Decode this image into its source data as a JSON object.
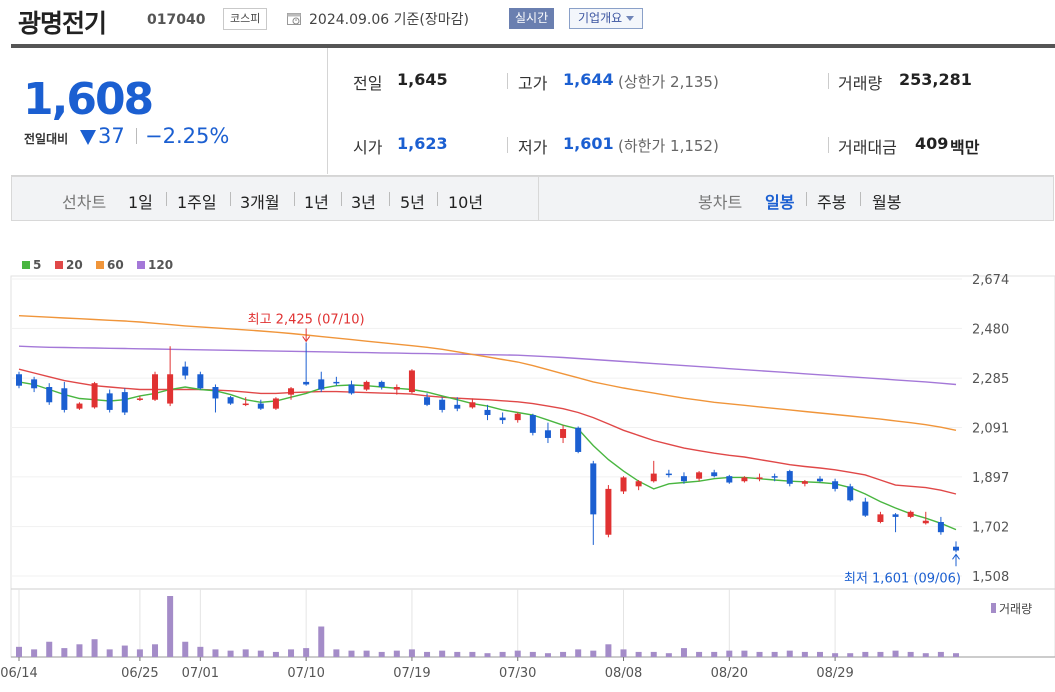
{
  "header": {
    "stock_name": "광명전기",
    "stock_code": "017040",
    "market_badge": "코스피",
    "calendar_icon": "calendar-icon",
    "date_text": "2024.09.06 기준(장마감)",
    "live_button": "실시간",
    "corp_button": "기업개요"
  },
  "quote": {
    "price": "1,608",
    "change_label": "전일대비",
    "change_value": "37",
    "change_pct": "−2.25%",
    "prev_close_label": "전일",
    "prev_close": "1,645",
    "open_label": "시가",
    "open": "1,623",
    "high_label": "고가",
    "high": "1,644",
    "upper_limit": "(상한가 2,135)",
    "low_label": "저가",
    "low": "1,601",
    "lower_limit": "(하한가 1,152)",
    "volume_label": "거래량",
    "volume": "253,281",
    "amount_label": "거래대금",
    "amount": "409",
    "amount_unit": "백만",
    "colors": {
      "down": "#1b5fd1",
      "up": "#e03232"
    }
  },
  "periods": {
    "line_label": "선차트",
    "line_items": [
      "1일",
      "1주일",
      "3개월",
      "1년",
      "3년",
      "5년",
      "10년"
    ],
    "candle_label": "봉차트",
    "candle_items": [
      "일봉",
      "주봉",
      "월봉"
    ],
    "candle_selected": "일봉"
  },
  "chart_data": {
    "type": "candlestick",
    "legend": [
      {
        "name": "5",
        "color": "#49b640"
      },
      {
        "name": "20",
        "color": "#e04848"
      },
      {
        "name": "60",
        "color": "#f0953a"
      },
      {
        "name": "120",
        "color": "#a478d8"
      }
    ],
    "y_ticks": [
      "2,674",
      "2,480",
      "2,285",
      "2,091",
      "1,897",
      "1,702",
      "1,508"
    ],
    "ylim": [
      1508,
      2674
    ],
    "x_labels": [
      {
        "i": 0,
        "label": "06/14"
      },
      {
        "i": 8,
        "label": "06/25"
      },
      {
        "i": 12,
        "label": "07/01"
      },
      {
        "i": 19,
        "label": "07/10"
      },
      {
        "i": 26,
        "label": "07/19"
      },
      {
        "i": 33,
        "label": "07/30"
      },
      {
        "i": 40,
        "label": "08/08"
      },
      {
        "i": 47,
        "label": "08/20"
      },
      {
        "i": 54,
        "label": "08/29"
      }
    ],
    "annotation_high": "최고 2,425 (07/10)",
    "annotation_low": "최저 1,601 (09/06)",
    "volume_label": "거래량",
    "candles": [
      {
        "o": 2300,
        "h": 2310,
        "l": 2245,
        "c": 2255
      },
      {
        "o": 2280,
        "h": 2290,
        "l": 2230,
        "c": 2245
      },
      {
        "o": 2250,
        "h": 2265,
        "l": 2180,
        "c": 2190
      },
      {
        "o": 2245,
        "h": 2270,
        "l": 2150,
        "c": 2160
      },
      {
        "o": 2165,
        "h": 2190,
        "l": 2160,
        "c": 2185
      },
      {
        "o": 2170,
        "h": 2270,
        "l": 2165,
        "c": 2265
      },
      {
        "o": 2225,
        "h": 2240,
        "l": 2150,
        "c": 2160
      },
      {
        "o": 2230,
        "h": 2245,
        "l": 2140,
        "c": 2150
      },
      {
        "o": 2200,
        "h": 2215,
        "l": 2195,
        "c": 2205
      },
      {
        "o": 2200,
        "h": 2310,
        "l": 2195,
        "c": 2300
      },
      {
        "o": 2185,
        "h": 2410,
        "l": 2175,
        "c": 2300
      },
      {
        "o": 2330,
        "h": 2350,
        "l": 2280,
        "c": 2295
      },
      {
        "o": 2300,
        "h": 2310,
        "l": 2240,
        "c": 2245
      },
      {
        "o": 2250,
        "h": 2260,
        "l": 2150,
        "c": 2205
      },
      {
        "o": 2210,
        "h": 2215,
        "l": 2180,
        "c": 2185
      },
      {
        "o": 2180,
        "h": 2210,
        "l": 2175,
        "c": 2185
      },
      {
        "o": 2185,
        "h": 2200,
        "l": 2160,
        "c": 2165
      },
      {
        "o": 2165,
        "h": 2210,
        "l": 2160,
        "c": 2205
      },
      {
        "o": 2220,
        "h": 2250,
        "l": 2200,
        "c": 2245
      },
      {
        "o": 2270,
        "h": 2425,
        "l": 2255,
        "c": 2260
      },
      {
        "o": 2280,
        "h": 2310,
        "l": 2230,
        "c": 2240
      },
      {
        "o": 2270,
        "h": 2290,
        "l": 2255,
        "c": 2265
      },
      {
        "o": 2260,
        "h": 2275,
        "l": 2220,
        "c": 2225
      },
      {
        "o": 2240,
        "h": 2275,
        "l": 2235,
        "c": 2270
      },
      {
        "o": 2270,
        "h": 2275,
        "l": 2240,
        "c": 2250
      },
      {
        "o": 2240,
        "h": 2260,
        "l": 2220,
        "c": 2250
      },
      {
        "o": 2230,
        "h": 2320,
        "l": 2225,
        "c": 2315
      },
      {
        "o": 2210,
        "h": 2225,
        "l": 2175,
        "c": 2180
      },
      {
        "o": 2200,
        "h": 2210,
        "l": 2150,
        "c": 2160
      },
      {
        "o": 2180,
        "h": 2210,
        "l": 2155,
        "c": 2165
      },
      {
        "o": 2170,
        "h": 2205,
        "l": 2165,
        "c": 2190
      },
      {
        "o": 2160,
        "h": 2180,
        "l": 2120,
        "c": 2140
      },
      {
        "o": 2130,
        "h": 2150,
        "l": 2105,
        "c": 2120
      },
      {
        "o": 2120,
        "h": 2150,
        "l": 2110,
        "c": 2145
      },
      {
        "o": 2140,
        "h": 2145,
        "l": 2060,
        "c": 2070
      },
      {
        "o": 2080,
        "h": 2110,
        "l": 2030,
        "c": 2050
      },
      {
        "o": 2050,
        "h": 2100,
        "l": 2030,
        "c": 2085
      },
      {
        "o": 2090,
        "h": 2095,
        "l": 1990,
        "c": 1995
      },
      {
        "o": 1950,
        "h": 1960,
        "l": 1630,
        "c": 1750
      },
      {
        "o": 1670,
        "h": 1865,
        "l": 1660,
        "c": 1850
      },
      {
        "o": 1840,
        "h": 1900,
        "l": 1830,
        "c": 1895
      },
      {
        "o": 1860,
        "h": 1885,
        "l": 1845,
        "c": 1880
      },
      {
        "o": 1880,
        "h": 1960,
        "l": 1875,
        "c": 1910
      },
      {
        "o": 1910,
        "h": 1925,
        "l": 1895,
        "c": 1905
      },
      {
        "o": 1900,
        "h": 1915,
        "l": 1870,
        "c": 1880
      },
      {
        "o": 1890,
        "h": 1920,
        "l": 1880,
        "c": 1915
      },
      {
        "o": 1915,
        "h": 1925,
        "l": 1895,
        "c": 1900
      },
      {
        "o": 1900,
        "h": 1905,
        "l": 1870,
        "c": 1875
      },
      {
        "o": 1880,
        "h": 1900,
        "l": 1875,
        "c": 1895
      },
      {
        "o": 1890,
        "h": 1910,
        "l": 1880,
        "c": 1895
      },
      {
        "o": 1900,
        "h": 1910,
        "l": 1880,
        "c": 1895
      },
      {
        "o": 1920,
        "h": 1925,
        "l": 1860,
        "c": 1870
      },
      {
        "o": 1870,
        "h": 1885,
        "l": 1860,
        "c": 1880
      },
      {
        "o": 1890,
        "h": 1900,
        "l": 1875,
        "c": 1880
      },
      {
        "o": 1880,
        "h": 1890,
        "l": 1840,
        "c": 1850
      },
      {
        "o": 1860,
        "h": 1870,
        "l": 1800,
        "c": 1805
      },
      {
        "o": 1800,
        "h": 1815,
        "l": 1740,
        "c": 1745
      },
      {
        "o": 1720,
        "h": 1760,
        "l": 1715,
        "c": 1750
      },
      {
        "o": 1750,
        "h": 1755,
        "l": 1680,
        "c": 1740
      },
      {
        "o": 1740,
        "h": 1765,
        "l": 1735,
        "c": 1760
      },
      {
        "o": 1715,
        "h": 1760,
        "l": 1710,
        "c": 1725
      },
      {
        "o": 1720,
        "h": 1740,
        "l": 1670,
        "c": 1680
      },
      {
        "o": 1623,
        "h": 1644,
        "l": 1601,
        "c": 1608
      }
    ],
    "ma5": [
      2270,
      2260,
      2240,
      2220,
      2205,
      2200,
      2195,
      2200,
      2215,
      2225,
      2240,
      2250,
      2240,
      2235,
      2220,
      2200,
      2190,
      2195,
      2210,
      2225,
      2245,
      2255,
      2258,
      2255,
      2250,
      2245,
      2240,
      2230,
      2215,
      2200,
      2185,
      2175,
      2160,
      2150,
      2140,
      2120,
      2100,
      2085,
      2020,
      1965,
      1920,
      1880,
      1850,
      1870,
      1875,
      1880,
      1890,
      1895,
      1895,
      1890,
      1885,
      1880,
      1878,
      1875,
      1870,
      1855,
      1830,
      1800,
      1775,
      1752,
      1735,
      1715,
      1690
    ],
    "ma20": [
      2320,
      2305,
      2290,
      2275,
      2265,
      2255,
      2250,
      2245,
      2240,
      2240,
      2240,
      2240,
      2240,
      2238,
      2235,
      2230,
      2225,
      2225,
      2228,
      2230,
      2232,
      2232,
      2230,
      2228,
      2226,
      2225,
      2222,
      2215,
      2210,
      2206,
      2203,
      2200,
      2196,
      2192,
      2185,
      2175,
      2165,
      2150,
      2130,
      2105,
      2080,
      2060,
      2040,
      2025,
      2010,
      2000,
      1990,
      1982,
      1975,
      1965,
      1955,
      1945,
      1938,
      1932,
      1925,
      1915,
      1905,
      1885,
      1865,
      1860,
      1855,
      1845,
      1830
    ],
    "ma60": [
      2530,
      2527,
      2524,
      2521,
      2518,
      2515,
      2512,
      2509,
      2505,
      2500,
      2495,
      2490,
      2486,
      2482,
      2478,
      2474,
      2470,
      2465,
      2460,
      2454,
      2448,
      2442,
      2436,
      2430,
      2424,
      2418,
      2412,
      2406,
      2398,
      2388,
      2378,
      2368,
      2358,
      2348,
      2334,
      2318,
      2302,
      2286,
      2270,
      2258,
      2246,
      2236,
      2226,
      2216,
      2206,
      2198,
      2190,
      2184,
      2178,
      2172,
      2166,
      2160,
      2154,
      2148,
      2142,
      2136,
      2130,
      2124,
      2117,
      2110,
      2102,
      2092,
      2080
    ],
    "ma120": [
      2410,
      2408,
      2406,
      2405,
      2404,
      2403,
      2402,
      2401,
      2400,
      2399,
      2398,
      2397,
      2396,
      2395,
      2394,
      2393,
      2392,
      2391,
      2390,
      2389,
      2388,
      2387,
      2386,
      2385,
      2384,
      2383,
      2382,
      2381,
      2380,
      2379,
      2378,
      2377,
      2376,
      2375,
      2372,
      2369,
      2366,
      2362,
      2358,
      2354,
      2350,
      2346,
      2342,
      2338,
      2334,
      2330,
      2326,
      2322,
      2318,
      2314,
      2310,
      2306,
      2302,
      2298,
      2294,
      2290,
      2286,
      2282,
      2278,
      2274,
      2270,
      2265,
      2260
    ],
    "volumes": [
      8,
      6,
      12,
      7,
      10,
      14,
      6,
      9,
      6,
      10,
      48,
      12,
      8,
      6,
      5,
      6,
      5,
      4,
      6,
      7,
      24,
      6,
      5,
      5,
      4,
      5,
      6,
      4,
      5,
      4,
      4,
      3,
      4,
      5,
      4,
      3,
      4,
      6,
      5,
      10,
      6,
      4,
      4,
      3,
      7,
      4,
      4,
      5,
      5,
      4,
      4,
      5,
      4,
      4,
      3,
      3,
      4,
      4,
      5,
      4,
      3,
      4,
      3
    ]
  }
}
